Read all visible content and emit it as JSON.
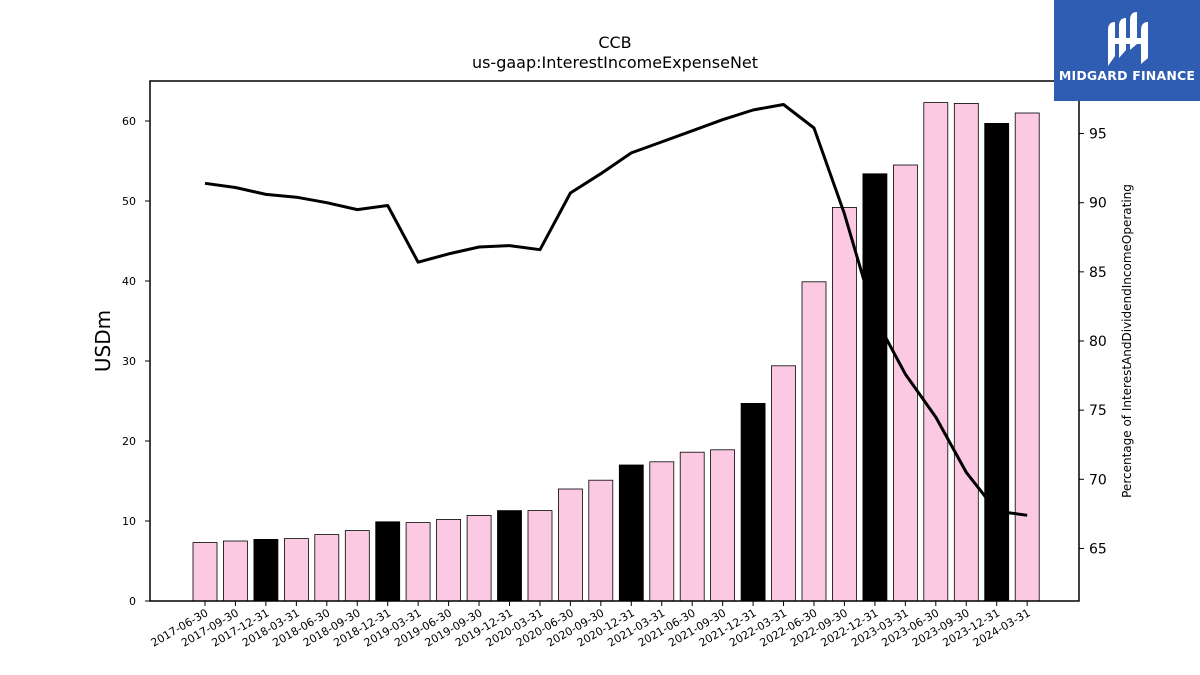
{
  "chart_data": {
    "type": "bar",
    "title": "CCB",
    "subtitle": "us-gaap:InterestIncomeExpenseNet",
    "ylabel": "USDm",
    "y2label": "Percentage of InterestAndDividendIncomeOperating",
    "ylim": [
      0,
      65
    ],
    "y2lim": [
      61.2,
      98.8
    ],
    "yticks": [
      0,
      10,
      20,
      30,
      40,
      50,
      60
    ],
    "y2ticks": [
      65,
      70,
      75,
      80,
      85,
      90,
      95
    ],
    "categories": [
      "2017-06-30",
      "2017-09-30",
      "2017-12-31",
      "2018-03-31",
      "2018-06-30",
      "2018-09-30",
      "2018-12-31",
      "2019-03-31",
      "2019-06-30",
      "2019-09-30",
      "2019-12-31",
      "2020-03-31",
      "2020-06-30",
      "2020-09-30",
      "2020-12-31",
      "2021-03-31",
      "2021-06-30",
      "2021-09-30",
      "2021-12-31",
      "2022-03-31",
      "2022-06-30",
      "2022-09-30",
      "2022-12-31",
      "2023-03-31",
      "2023-06-30",
      "2023-09-30",
      "2023-12-31",
      "2024-03-31"
    ],
    "values": [
      7.3,
      7.5,
      7.7,
      7.8,
      8.3,
      8.8,
      9.9,
      9.8,
      10.2,
      10.7,
      11.3,
      11.3,
      14.0,
      15.1,
      17.0,
      17.4,
      18.6,
      18.9,
      24.7,
      29.4,
      39.9,
      49.2,
      53.4,
      54.5,
      62.3,
      62.2,
      59.7,
      61.0
    ],
    "highlight": [
      false,
      false,
      true,
      false,
      false,
      false,
      true,
      false,
      false,
      false,
      true,
      false,
      false,
      false,
      true,
      false,
      false,
      false,
      true,
      false,
      false,
      false,
      true,
      false,
      false,
      false,
      true,
      false
    ],
    "line_values": [
      91.4,
      91.1,
      90.6,
      90.4,
      90.0,
      89.5,
      89.8,
      85.7,
      86.3,
      86.8,
      86.9,
      86.6,
      90.7,
      92.1,
      93.6,
      94.4,
      95.2,
      96.0,
      96.7,
      97.1,
      95.4,
      89.2,
      81.7,
      77.6,
      74.5,
      70.5,
      67.7,
      67.4
    ],
    "colors": {
      "bar": "#fcc9e3",
      "bar_highlight": "#000000",
      "line": "#000000"
    },
    "grid": false
  },
  "logo": {
    "text": "MIDGARD FINANCE",
    "background": "#2f5db1"
  }
}
